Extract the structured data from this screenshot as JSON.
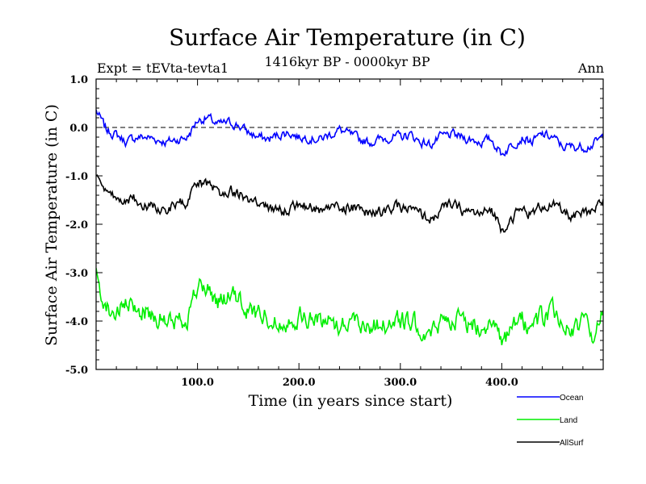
{
  "chart_data": {
    "type": "line",
    "title": "Surface Air Temperature (in C)",
    "subtitle": "1416kyr BP - 0000kyr BP",
    "expt_label": "Expt = tEVta-tevta1",
    "season_label": "Ann",
    "xlabel": "Time (in years since start)",
    "ylabel": "Surface Air Temperature (in C)",
    "xlim": [
      0,
      500
    ],
    "ylim": [
      -5.0,
      1.0
    ],
    "x_ticks": [
      "100.0",
      "200.0",
      "300.0",
      "400.0"
    ],
    "x_tick_values": [
      100,
      200,
      300,
      400
    ],
    "y_ticks": [
      "1.0",
      "0.0",
      "-1.0",
      "-2.0",
      "-3.0",
      "-4.0",
      "-5.0"
    ],
    "y_tick_values": [
      1.0,
      0.0,
      -1.0,
      -2.0,
      -3.0,
      -4.0,
      -5.0
    ],
    "reference_line": 0.0,
    "legend_position": "below-right",
    "series": [
      {
        "name": "Ocean",
        "color": "#0000ff",
        "x": [
          0,
          10,
          20,
          30,
          40,
          50,
          60,
          70,
          80,
          90,
          100,
          110,
          120,
          130,
          140,
          150,
          160,
          170,
          180,
          190,
          200,
          210,
          220,
          230,
          240,
          250,
          260,
          270,
          280,
          290,
          300,
          310,
          320,
          330,
          340,
          350,
          360,
          370,
          380,
          390,
          400,
          410,
          420,
          430,
          440,
          450,
          460,
          470,
          480,
          490,
          500
        ],
        "values": [
          0.35,
          -0.05,
          -0.15,
          -0.3,
          -0.2,
          -0.2,
          -0.25,
          -0.3,
          -0.25,
          -0.2,
          0.15,
          0.2,
          0.05,
          0.1,
          0.05,
          -0.1,
          -0.2,
          -0.25,
          -0.15,
          -0.1,
          -0.2,
          -0.2,
          -0.25,
          -0.15,
          -0.05,
          -0.15,
          -0.25,
          -0.3,
          -0.25,
          -0.2,
          -0.2,
          -0.15,
          -0.3,
          -0.35,
          -0.2,
          -0.15,
          -0.2,
          -0.25,
          -0.3,
          -0.25,
          -0.55,
          -0.35,
          -0.2,
          -0.3,
          -0.15,
          -0.2,
          -0.4,
          -0.4,
          -0.4,
          -0.35,
          -0.2
        ]
      },
      {
        "name": "Land",
        "color": "#00ee00",
        "x": [
          0,
          10,
          20,
          30,
          40,
          50,
          60,
          70,
          80,
          90,
          100,
          110,
          120,
          130,
          140,
          150,
          160,
          170,
          180,
          190,
          200,
          210,
          220,
          230,
          240,
          250,
          260,
          270,
          280,
          290,
          300,
          310,
          320,
          330,
          340,
          350,
          360,
          370,
          380,
          390,
          400,
          410,
          420,
          430,
          440,
          450,
          460,
          470,
          480,
          490,
          500
        ],
        "values": [
          -3.05,
          -3.7,
          -3.85,
          -3.7,
          -3.75,
          -3.8,
          -3.9,
          -4.05,
          -4.0,
          -3.9,
          -3.3,
          -3.35,
          -3.6,
          -3.5,
          -3.55,
          -3.8,
          -3.85,
          -3.9,
          -4.05,
          -3.95,
          -3.9,
          -3.95,
          -4.0,
          -3.95,
          -4.1,
          -3.95,
          -4.0,
          -4.1,
          -4.05,
          -4.05,
          -4.0,
          -4.05,
          -4.1,
          -4.35,
          -4.0,
          -3.9,
          -4.0,
          -4.1,
          -4.05,
          -4.0,
          -4.55,
          -4.2,
          -4.0,
          -4.1,
          -3.9,
          -3.85,
          -4.0,
          -4.2,
          -4.05,
          -4.25,
          -3.85
        ]
      },
      {
        "name": "AllSurf",
        "color": "#000000",
        "x": [
          0,
          10,
          20,
          30,
          40,
          50,
          60,
          70,
          80,
          90,
          100,
          110,
          120,
          130,
          140,
          150,
          160,
          170,
          180,
          190,
          200,
          210,
          220,
          230,
          240,
          250,
          260,
          270,
          280,
          290,
          300,
          310,
          320,
          330,
          340,
          350,
          360,
          370,
          380,
          390,
          400,
          410,
          420,
          430,
          440,
          450,
          460,
          470,
          480,
          490,
          500
        ],
        "values": [
          -0.95,
          -1.4,
          -1.5,
          -1.45,
          -1.5,
          -1.6,
          -1.65,
          -1.7,
          -1.6,
          -1.55,
          -1.15,
          -1.2,
          -1.35,
          -1.3,
          -1.35,
          -1.5,
          -1.6,
          -1.65,
          -1.75,
          -1.65,
          -1.6,
          -1.65,
          -1.7,
          -1.65,
          -1.65,
          -1.65,
          -1.7,
          -1.8,
          -1.75,
          -1.7,
          -1.65,
          -1.7,
          -1.8,
          -1.9,
          -1.7,
          -1.6,
          -1.7,
          -1.75,
          -1.8,
          -1.7,
          -2.1,
          -1.85,
          -1.7,
          -1.8,
          -1.6,
          -1.6,
          -1.75,
          -1.85,
          -1.8,
          -1.8,
          -1.5
        ]
      }
    ]
  }
}
